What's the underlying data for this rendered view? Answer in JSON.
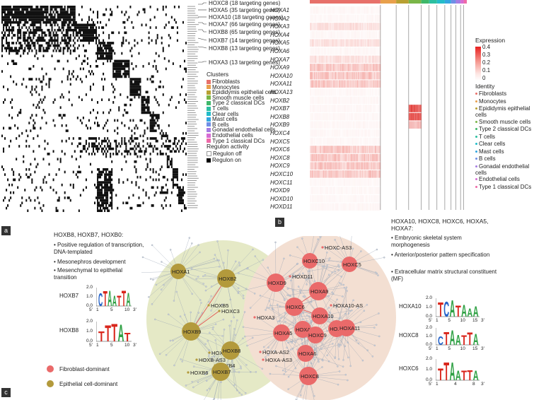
{
  "panel_labels": {
    "a": "a",
    "b": "b",
    "c": "c"
  },
  "panel_a": {
    "regulon_labels": [
      "HOXC8 (18 targeting genes)",
      "HOXA5 (35 targeting genes)",
      "HOXA10 (18 targeting genes)",
      "HOXA7 (66 targeting genes)",
      "HOXB8 (65 targeting genes)",
      "HOXB7 (14 targeting genes)",
      "HOXB8 (13 targeting genes)",
      "HOXA3 (13 targeting genes)"
    ],
    "clusters_title": "Clusters",
    "clusters": [
      {
        "label": "Fibroblasts",
        "color": "#e7706a"
      },
      {
        "label": "Monocytes",
        "color": "#e8a04c"
      },
      {
        "label": "Epididymis epithelial cells",
        "color": "#b8a032"
      },
      {
        "label": "Smooth muscle cells",
        "color": "#7ab648"
      },
      {
        "label": "Type 2 classical DCs",
        "color": "#3fb86a"
      },
      {
        "label": "T cells",
        "color": "#2bbfa0"
      },
      {
        "label": "Clear cells",
        "color": "#23bcc9"
      },
      {
        "label": "Mast cells",
        "color": "#33a6e0"
      },
      {
        "label": "B cells",
        "color": "#6f8fe6"
      },
      {
        "label": "Gonadal endothelial cells",
        "color": "#a67ce2"
      },
      {
        "label": "Endothelial cells",
        "color": "#d66bd3"
      },
      {
        "label": "Type 1 classical DCs",
        "color": "#ee6aa8"
      }
    ],
    "activity_title": "Regulon activity",
    "activity": [
      {
        "label": "Regulon off",
        "color": "#ffffff"
      },
      {
        "label": "Regulon on",
        "color": "#000000"
      }
    ]
  },
  "panel_b": {
    "genes": [
      "HOXA1",
      "HOXA2",
      "HOXA3",
      "HOXA4",
      "HOXA5",
      "HOXA6",
      "HOXA7",
      "HOXA9",
      "HOXA10",
      "HOXA11",
      "HOXA13",
      "HOXB2",
      "HOXB7",
      "HOXB8",
      "HOXB9",
      "HOXC4",
      "HOXC5",
      "HOXC6",
      "HOXC8",
      "HOXC9",
      "HOXC10",
      "HOXC11",
      "HOXD9",
      "HOXD10",
      "HOXD11"
    ],
    "expression_title": "Expression",
    "expression_ticks": [
      "0.4",
      "0.3",
      "0.2",
      "0.1",
      "0"
    ],
    "identity_title": "Identity",
    "identity": [
      "Fibroblasts",
      "Monocytes",
      "Epididymis epithelial cells",
      "Smooth muscle cells",
      "Type 2 classical DCs",
      "T cells",
      "Clear cells",
      "Mast cells",
      "B cells",
      "Gonadal endothelial cells",
      "Endothelial cells",
      "Type 1 classical DCs"
    ]
  },
  "panel_c": {
    "left_title": "HOXB8, HOXB7, HOXB0:",
    "left_terms": [
      "Positive regulation of transcription, DNA-templated",
      "Mesonephros development",
      "Mesenchymal to epithelial transition"
    ],
    "left_logos": [
      {
        "label": "HOXB7",
        "motif": "CTAATTA",
        "ticks": [
          "1",
          "5",
          "10"
        ]
      },
      {
        "label": "HOXB8",
        "motif": "TTTAT",
        "ticks": [
          "1",
          "5",
          "10"
        ]
      }
    ],
    "right_title": "HOXA10, HOXC8, HOXC6, HOXA5, HOXA7:",
    "right_terms": [
      "Embryonic skeletal system morphogenesis",
      "Anterior/posterior pattern specification",
      "Extracellular matrix structural constituent (MF)"
    ],
    "right_logos": [
      {
        "label": "HOXA10",
        "motif": "TCATAAA",
        "ticks": [
          "1",
          "5",
          "10",
          "15"
        ]
      },
      {
        "label": "HOXC8",
        "motif": "CTAATTA",
        "ticks": [
          "1",
          "5",
          "10",
          "15"
        ]
      },
      {
        "label": "HOXC6",
        "motif": "TTAATTA",
        "ticks": [
          "1",
          "4",
          "8"
        ]
      }
    ],
    "legend": [
      {
        "label": "Fibroblast-dominant",
        "color": "#ea6a6a"
      },
      {
        "label": "Epithelial cell-dominant",
        "color": "#b39a3c"
      }
    ],
    "nodes_green": [
      "HOXA1",
      "HOXB2",
      "HOXB5",
      "HOXC3",
      "HOXB9",
      "HOXD8",
      "HOXB6",
      "HOXB-AS3",
      "HOXB4",
      "HOXB7",
      "HOXB8"
    ],
    "nodes_red": [
      "HOXC-AS3",
      "HOXC10",
      "HOXC5",
      "HOXD9",
      "HOXD11",
      "HOXA9",
      "HOXC6",
      "HOXA10",
      "HOXA10-AS",
      "HOXA3",
      "HOXA7",
      "HOXA5",
      "HOXC9",
      "HOXD10",
      "HOXA11",
      "HOXA6",
      "HOXC8",
      "HOXA-AS2",
      "HOXA-AS3"
    ],
    "axis_y": [
      "2.0",
      "1.0",
      "0.0"
    ],
    "axis_5": "5'",
    "axis_3": "3'"
  }
}
